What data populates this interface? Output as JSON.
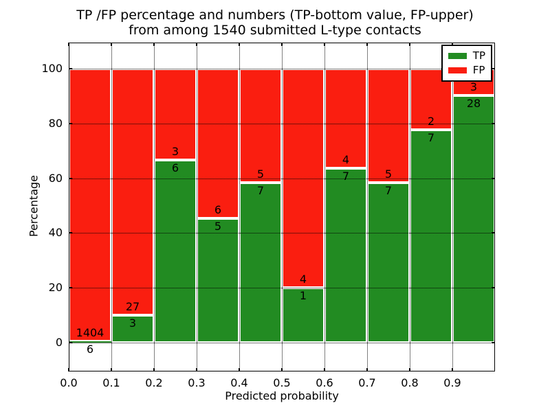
{
  "figure": {
    "title_line1": "TP /FP percentage and numbers (TP-bottom value, FP-upper)",
    "title_line2": "from among 1540 submitted L-type contacts"
  },
  "chart_data": {
    "type": "bar",
    "stacked": true,
    "normalized": "each bar stacks TP+FP to 100%",
    "title": "TP /FP percentage and numbers (TP-bottom value, FP-upper) from among 1540 submitted L-type contacts",
    "xlabel": "Predicted probability",
    "ylabel": "Percentage",
    "total_contacts": 1540,
    "bin_width": 0.1,
    "categories": [
      "0.0-0.1",
      "0.1-0.2",
      "0.2-0.3",
      "0.3-0.4",
      "0.4-0.5",
      "0.5-0.6",
      "0.6-0.7",
      "0.7-0.8",
      "0.8-0.9",
      "0.9-1.0"
    ],
    "series": [
      {
        "name": "TP",
        "color": "#228b22",
        "counts": [
          6,
          3,
          6,
          5,
          7,
          1,
          7,
          7,
          7,
          28
        ]
      },
      {
        "name": "FP",
        "color": "#fa1e10",
        "counts": [
          1404,
          27,
          3,
          6,
          5,
          4,
          4,
          5,
          2,
          3
        ]
      }
    ],
    "tp_percent": [
      0.43,
      10.0,
      66.67,
      45.45,
      58.33,
      20.0,
      63.64,
      58.33,
      77.78,
      90.32
    ],
    "x_ticks": {
      "positions": [
        0.0,
        0.1,
        0.2,
        0.3,
        0.4,
        0.5,
        0.6,
        0.7,
        0.8,
        0.9
      ],
      "labels": [
        "0.0",
        "0.1",
        "0.2",
        "0.3",
        "0.4",
        "0.5",
        "0.6",
        "0.7",
        "0.8",
        "0.9"
      ]
    },
    "y_ticks": {
      "positions": [
        0,
        20,
        40,
        60,
        80,
        100
      ],
      "labels": [
        "0",
        "20",
        "40",
        "60",
        "80",
        "100"
      ]
    },
    "xlim": [
      0.0,
      1.0
    ],
    "ylim": [
      -10.5,
      109.5
    ],
    "grid": "dotted black, both axes, drawn above bars",
    "bar_edge_color": "#ffffff",
    "legend": {
      "position": "upper right",
      "entries": [
        {
          "label": "TP",
          "color": "#228b22"
        },
        {
          "label": "FP",
          "color": "#fa1e10"
        }
      ]
    }
  }
}
